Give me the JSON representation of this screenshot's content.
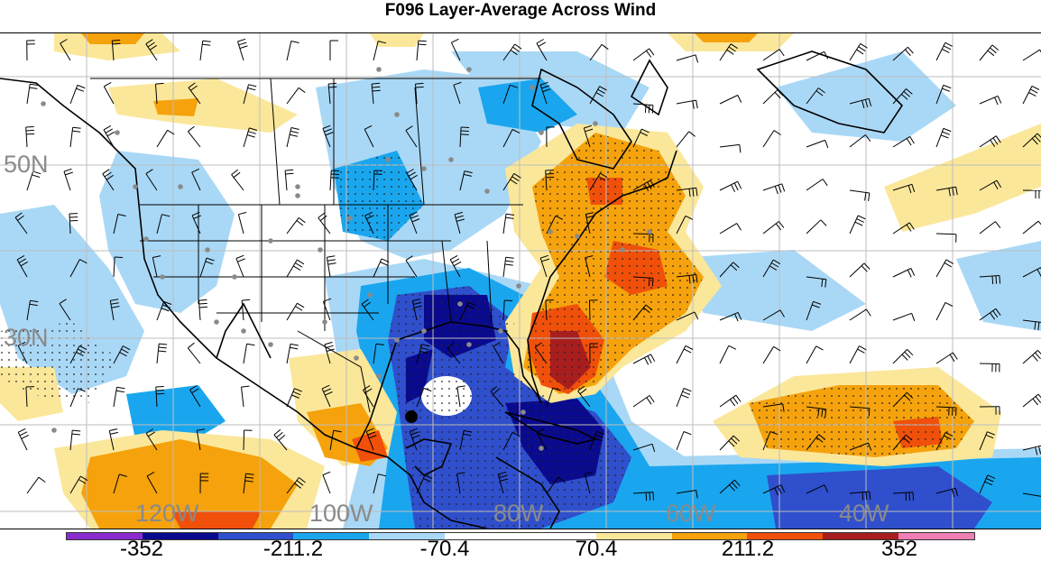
{
  "title": "F096 Layer-Average Across Wind",
  "lat_labels": [
    "50N",
    "30N"
  ],
  "lon_labels": [
    "120W",
    "100W",
    "80W",
    "60W",
    "40W"
  ],
  "colorbar": {
    "labels": [
      "-352",
      "-211.2",
      "-70.4",
      "70.4",
      "211.2",
      "352"
    ],
    "colors": [
      "#8b2ccf",
      "#0a0a8f",
      "#2f4fcc",
      "#1aa6ee",
      "#a9d8f6",
      "#ffffff",
      "#ffffff",
      "#fbe79a",
      "#f5a20c",
      "#f0500a",
      "#a81e1e",
      "#ee7fb5"
    ]
  },
  "map": {
    "field_colors": {
      "strong_negative": "#0a0a8f",
      "negative": "#2f4fcc",
      "moderate_negative": "#1aa6ee",
      "weak_negative": "#a9d8f6",
      "weak_positive": "#fbe79a",
      "moderate_positive": "#f5a20c",
      "positive": "#f0500a",
      "strong_positive": "#a81e1e"
    },
    "marker": "black-dot"
  }
}
